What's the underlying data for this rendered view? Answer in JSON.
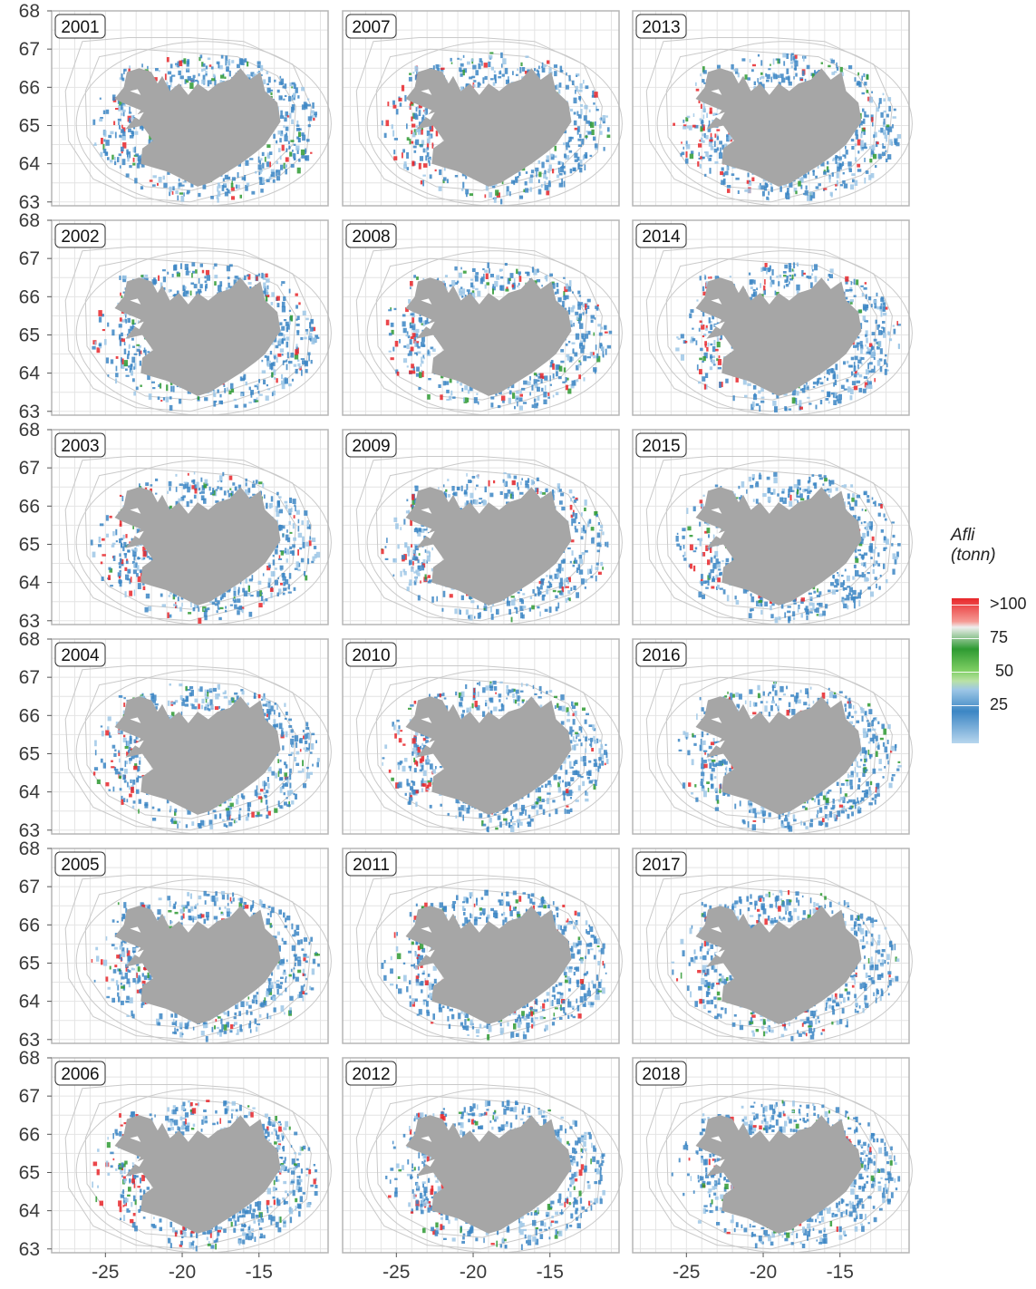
{
  "panels": [
    "2001",
    "2007",
    "2013",
    "2002",
    "2008",
    "2014",
    "2003",
    "2009",
    "2015",
    "2004",
    "2010",
    "2016",
    "2005",
    "2011",
    "2017",
    "2006",
    "2012",
    "2018"
  ],
  "axes": {
    "y_ticks": [
      "68",
      "67",
      "66",
      "65",
      "64",
      "63"
    ],
    "x_ticks": [
      "-25",
      "-20",
      "-15"
    ]
  },
  "legend": {
    "title_line1": "Afli",
    "title_line2": "(tonn)",
    "labels": [
      ">100",
      "75",
      "50",
      "25"
    ]
  },
  "colors": {
    "land": "#a6a6a6",
    "high": "#e8262a",
    "mid": "#2e9a32",
    "low": "#3c86c4",
    "contour": "#c9c9c9",
    "grid": "#e4e4e4",
    "panel_border": "#b5b5b5"
  }
}
